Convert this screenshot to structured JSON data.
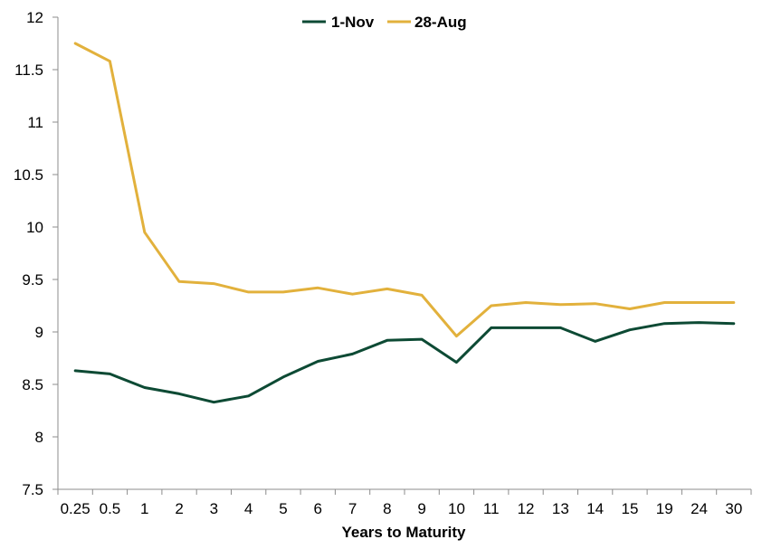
{
  "chart_data": {
    "type": "line",
    "title": "",
    "xlabel": "Years to Maturity",
    "ylabel": "",
    "categories": [
      "0.25",
      "0.5",
      "1",
      "2",
      "3",
      "4",
      "5",
      "6",
      "7",
      "8",
      "9",
      "10",
      "11",
      "12",
      "13",
      "14",
      "15",
      "19",
      "24",
      "30"
    ],
    "ylim": [
      7.5,
      12
    ],
    "yticks": [
      7.5,
      8,
      8.5,
      9,
      9.5,
      10,
      10.5,
      11,
      11.5,
      12
    ],
    "grid": false,
    "legend": "top-center",
    "series": [
      {
        "name": "1-Nov",
        "color": "#0d4a34",
        "values": [
          8.63,
          8.6,
          8.47,
          8.41,
          8.33,
          8.39,
          8.57,
          8.72,
          8.79,
          8.92,
          8.93,
          8.71,
          9.04,
          9.04,
          9.04,
          8.91,
          9.02,
          9.08,
          9.09,
          9.08
        ]
      },
      {
        "name": "28-Aug",
        "color": "#e2b13c",
        "values": [
          11.75,
          11.58,
          9.95,
          9.48,
          9.46,
          9.38,
          9.38,
          9.42,
          9.36,
          9.41,
          9.35,
          8.96,
          9.25,
          9.28,
          9.26,
          9.27,
          9.22,
          9.28,
          9.28,
          9.28
        ]
      }
    ]
  }
}
